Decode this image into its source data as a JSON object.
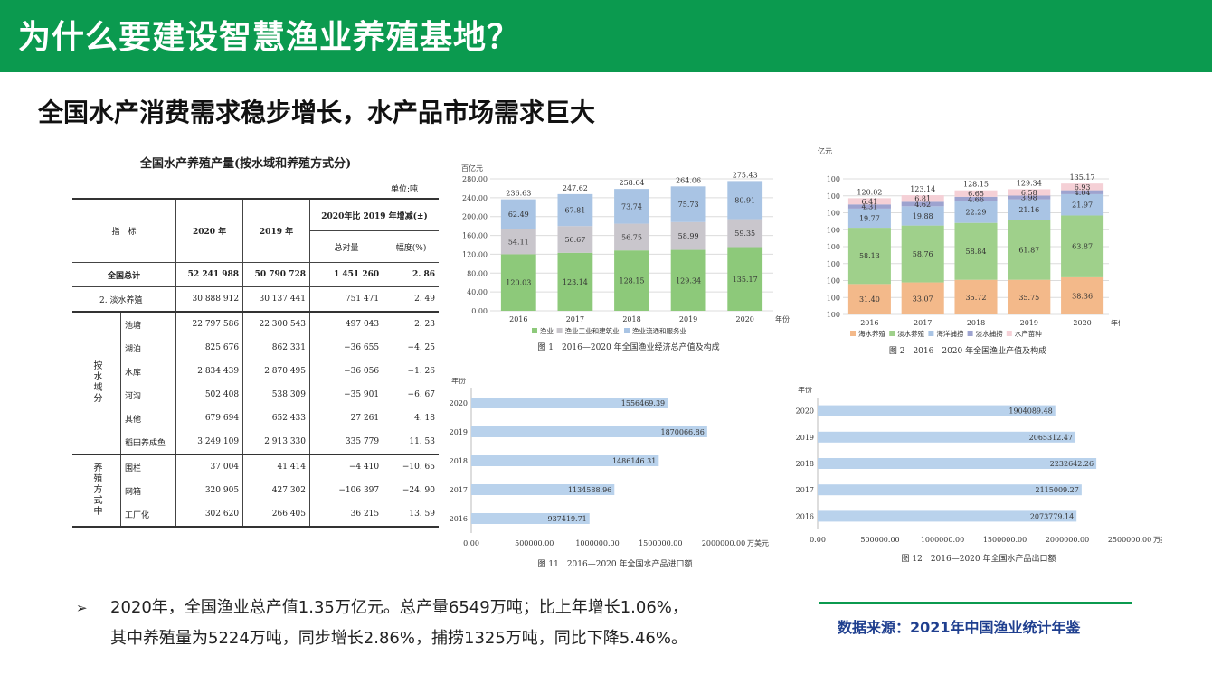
{
  "header": {
    "title": "为什么要建设智慧渔业养殖基地？",
    "subtitle": "全国水产消费需求稳步增长，水产品市场需求巨大"
  },
  "table": {
    "title": "全国水产养殖产量(按水域和养殖方式分)",
    "unit": "单位:吨",
    "head_indicator": "指　标",
    "head_2020": "2020 年",
    "head_2019": "2019 年",
    "head_change": "2020年比 2019 年增减(±)",
    "head_abs": "总对量",
    "head_pct": "幅度(%)",
    "group1": "按水域分",
    "group2": "养殖方式中",
    "rows": [
      {
        "name": "全国总计",
        "v2020": "52 241 988",
        "v2019": "50 790 728",
        "abs": "1 451 260",
        "pct": "2. 86"
      },
      {
        "name": "2. 淡水养殖",
        "v2020": "30 888 912",
        "v2019": "30 137 441",
        "abs": "751 471",
        "pct": "2. 49"
      },
      {
        "name": "池塘",
        "v2020": "22 797 586",
        "v2019": "22 300 543",
        "abs": "497 043",
        "pct": "2. 23"
      },
      {
        "name": "湖泊",
        "v2020": "825 676",
        "v2019": "862 331",
        "abs": "−36 655",
        "pct": "−4. 25"
      },
      {
        "name": "水库",
        "v2020": "2 834 439",
        "v2019": "2 870 495",
        "abs": "−36 056",
        "pct": "−1. 26"
      },
      {
        "name": "河沟",
        "v2020": "502 408",
        "v2019": "538 309",
        "abs": "−35 901",
        "pct": "−6. 67"
      },
      {
        "name": "其他",
        "v2020": "679 694",
        "v2019": "652 433",
        "abs": "27 261",
        "pct": "4. 18"
      },
      {
        "name": "稻田养成鱼",
        "v2020": "3 249 109",
        "v2019": "2 913 330",
        "abs": "335 779",
        "pct": "11. 53"
      },
      {
        "name": "围栏",
        "v2020": "37 004",
        "v2019": "41 414",
        "abs": "−4 410",
        "pct": "−10. 65"
      },
      {
        "name": "网箱",
        "v2020": "320 905",
        "v2019": "427 302",
        "abs": "−106 397",
        "pct": "−24. 90"
      },
      {
        "name": "工厂化",
        "v2020": "302 620",
        "v2019": "266 405",
        "abs": "36 215",
        "pct": "13. 59"
      }
    ]
  },
  "chart_data": [
    {
      "type": "bar",
      "stacked": true,
      "title": "图 1　2016—2020 年全国渔业经济总产值及构成",
      "ylabel": "百亿元",
      "xlabel": "年份",
      "ylim": [
        0,
        280
      ],
      "yticks": [
        "0.00",
        "40.00",
        "80.00",
        "120.00",
        "160.00",
        "200.00",
        "240.00",
        "280.00"
      ],
      "categories": [
        "2016",
        "2017",
        "2018",
        "2019",
        "2020"
      ],
      "totals": [
        "236.63",
        "247.62",
        "258.64",
        "264.06",
        "275.43"
      ],
      "series": [
        {
          "name": "渔业",
          "color": "#8dc97a",
          "values": [
            120.03,
            123.14,
            128.15,
            129.34,
            135.17
          ]
        },
        {
          "name": "渔业工业和建筑业",
          "color": "#c9c6cc",
          "values": [
            54.11,
            56.67,
            56.75,
            58.99,
            59.35
          ]
        },
        {
          "name": "渔业流通和服务业",
          "color": "#a9c4e4",
          "values": [
            62.49,
            67.81,
            73.74,
            75.73,
            80.91
          ]
        }
      ]
    },
    {
      "type": "bar",
      "stacked": true,
      "title": "图 2　2016—2020 年全国渔业产值及构成",
      "ylabel": "亿元",
      "xlabel": "年份",
      "ylim": [
        0,
        140
      ],
      "yticks": [
        "100",
        "100",
        "100",
        "100",
        "100",
        "100",
        "100",
        "100",
        "100"
      ],
      "categories": [
        "2016",
        "2017",
        "2018",
        "2019",
        "2020"
      ],
      "totals": [
        "120.02",
        "123.14",
        "128.15",
        "129.34",
        "135.17"
      ],
      "series": [
        {
          "name": "海水养殖",
          "color": "#f3b98a",
          "values": [
            31.4,
            33.07,
            35.72,
            35.75,
            38.36
          ]
        },
        {
          "name": "淡水养殖",
          "color": "#9fd08b",
          "values": [
            58.13,
            58.76,
            58.84,
            61.87,
            63.87
          ]
        },
        {
          "name": "海洋捕捞",
          "color": "#a9c4e4",
          "values": [
            19.77,
            19.88,
            22.29,
            21.16,
            21.97
          ]
        },
        {
          "name": "淡水捕捞",
          "color": "#9da3cf",
          "values": [
            4.31,
            4.62,
            4.66,
            3.98,
            4.04
          ]
        },
        {
          "name": "水产苗种",
          "color": "#f5d0d6",
          "values": [
            6.41,
            6.81,
            6.65,
            6.58,
            6.93
          ]
        }
      ]
    },
    {
      "type": "bar",
      "orientation": "horizontal",
      "title": "图 11　2016—2020 年全国水产品进口额",
      "ylabel": "年份",
      "xlabel": "万美元",
      "xlim": [
        0,
        2000000
      ],
      "xticks": [
        "0.00",
        "500000.00",
        "1000000.00",
        "1500000.00",
        "2000000.00"
      ],
      "categories": [
        "2020",
        "2019",
        "2018",
        "2017",
        "2016"
      ],
      "values": [
        1556469.39,
        1870066.86,
        1486146.31,
        1134588.96,
        937419.71
      ],
      "labels": [
        "1556469.39",
        "1870066.86",
        "1486146.31",
        "1134588.96",
        "937419.71"
      ],
      "color": "#b9d2ec"
    },
    {
      "type": "bar",
      "orientation": "horizontal",
      "title": "图 12　2016—2020 年全国水产品出口额",
      "ylabel": "年份",
      "xlabel": "万美元",
      "xlim": [
        0,
        2500000
      ],
      "xticks": [
        "0.00",
        "500000.00",
        "1000000.00",
        "1500000.00",
        "2000000.00",
        "2500000.00"
      ],
      "categories": [
        "2020",
        "2019",
        "2018",
        "2017",
        "2016"
      ],
      "values": [
        1904089.48,
        2065312.47,
        2232642.26,
        2115009.27,
        2073779.14
      ],
      "labels": [
        "1904089.48",
        "2065312.47",
        "2232642.26",
        "2115009.27",
        "2073779.14"
      ],
      "color": "#b9d2ec"
    }
  ],
  "note": {
    "bullet": "➢",
    "line1": "2020年，全国渔业总产值1.35万亿元。总产量6549万吨；比上年增长1.06%，",
    "line2": "其中养殖量为5224万吨，同步增长2.86%，捕捞1325万吨，同比下降5.46%。"
  },
  "source": "数据来源：2021年中国渔业统计年鉴"
}
